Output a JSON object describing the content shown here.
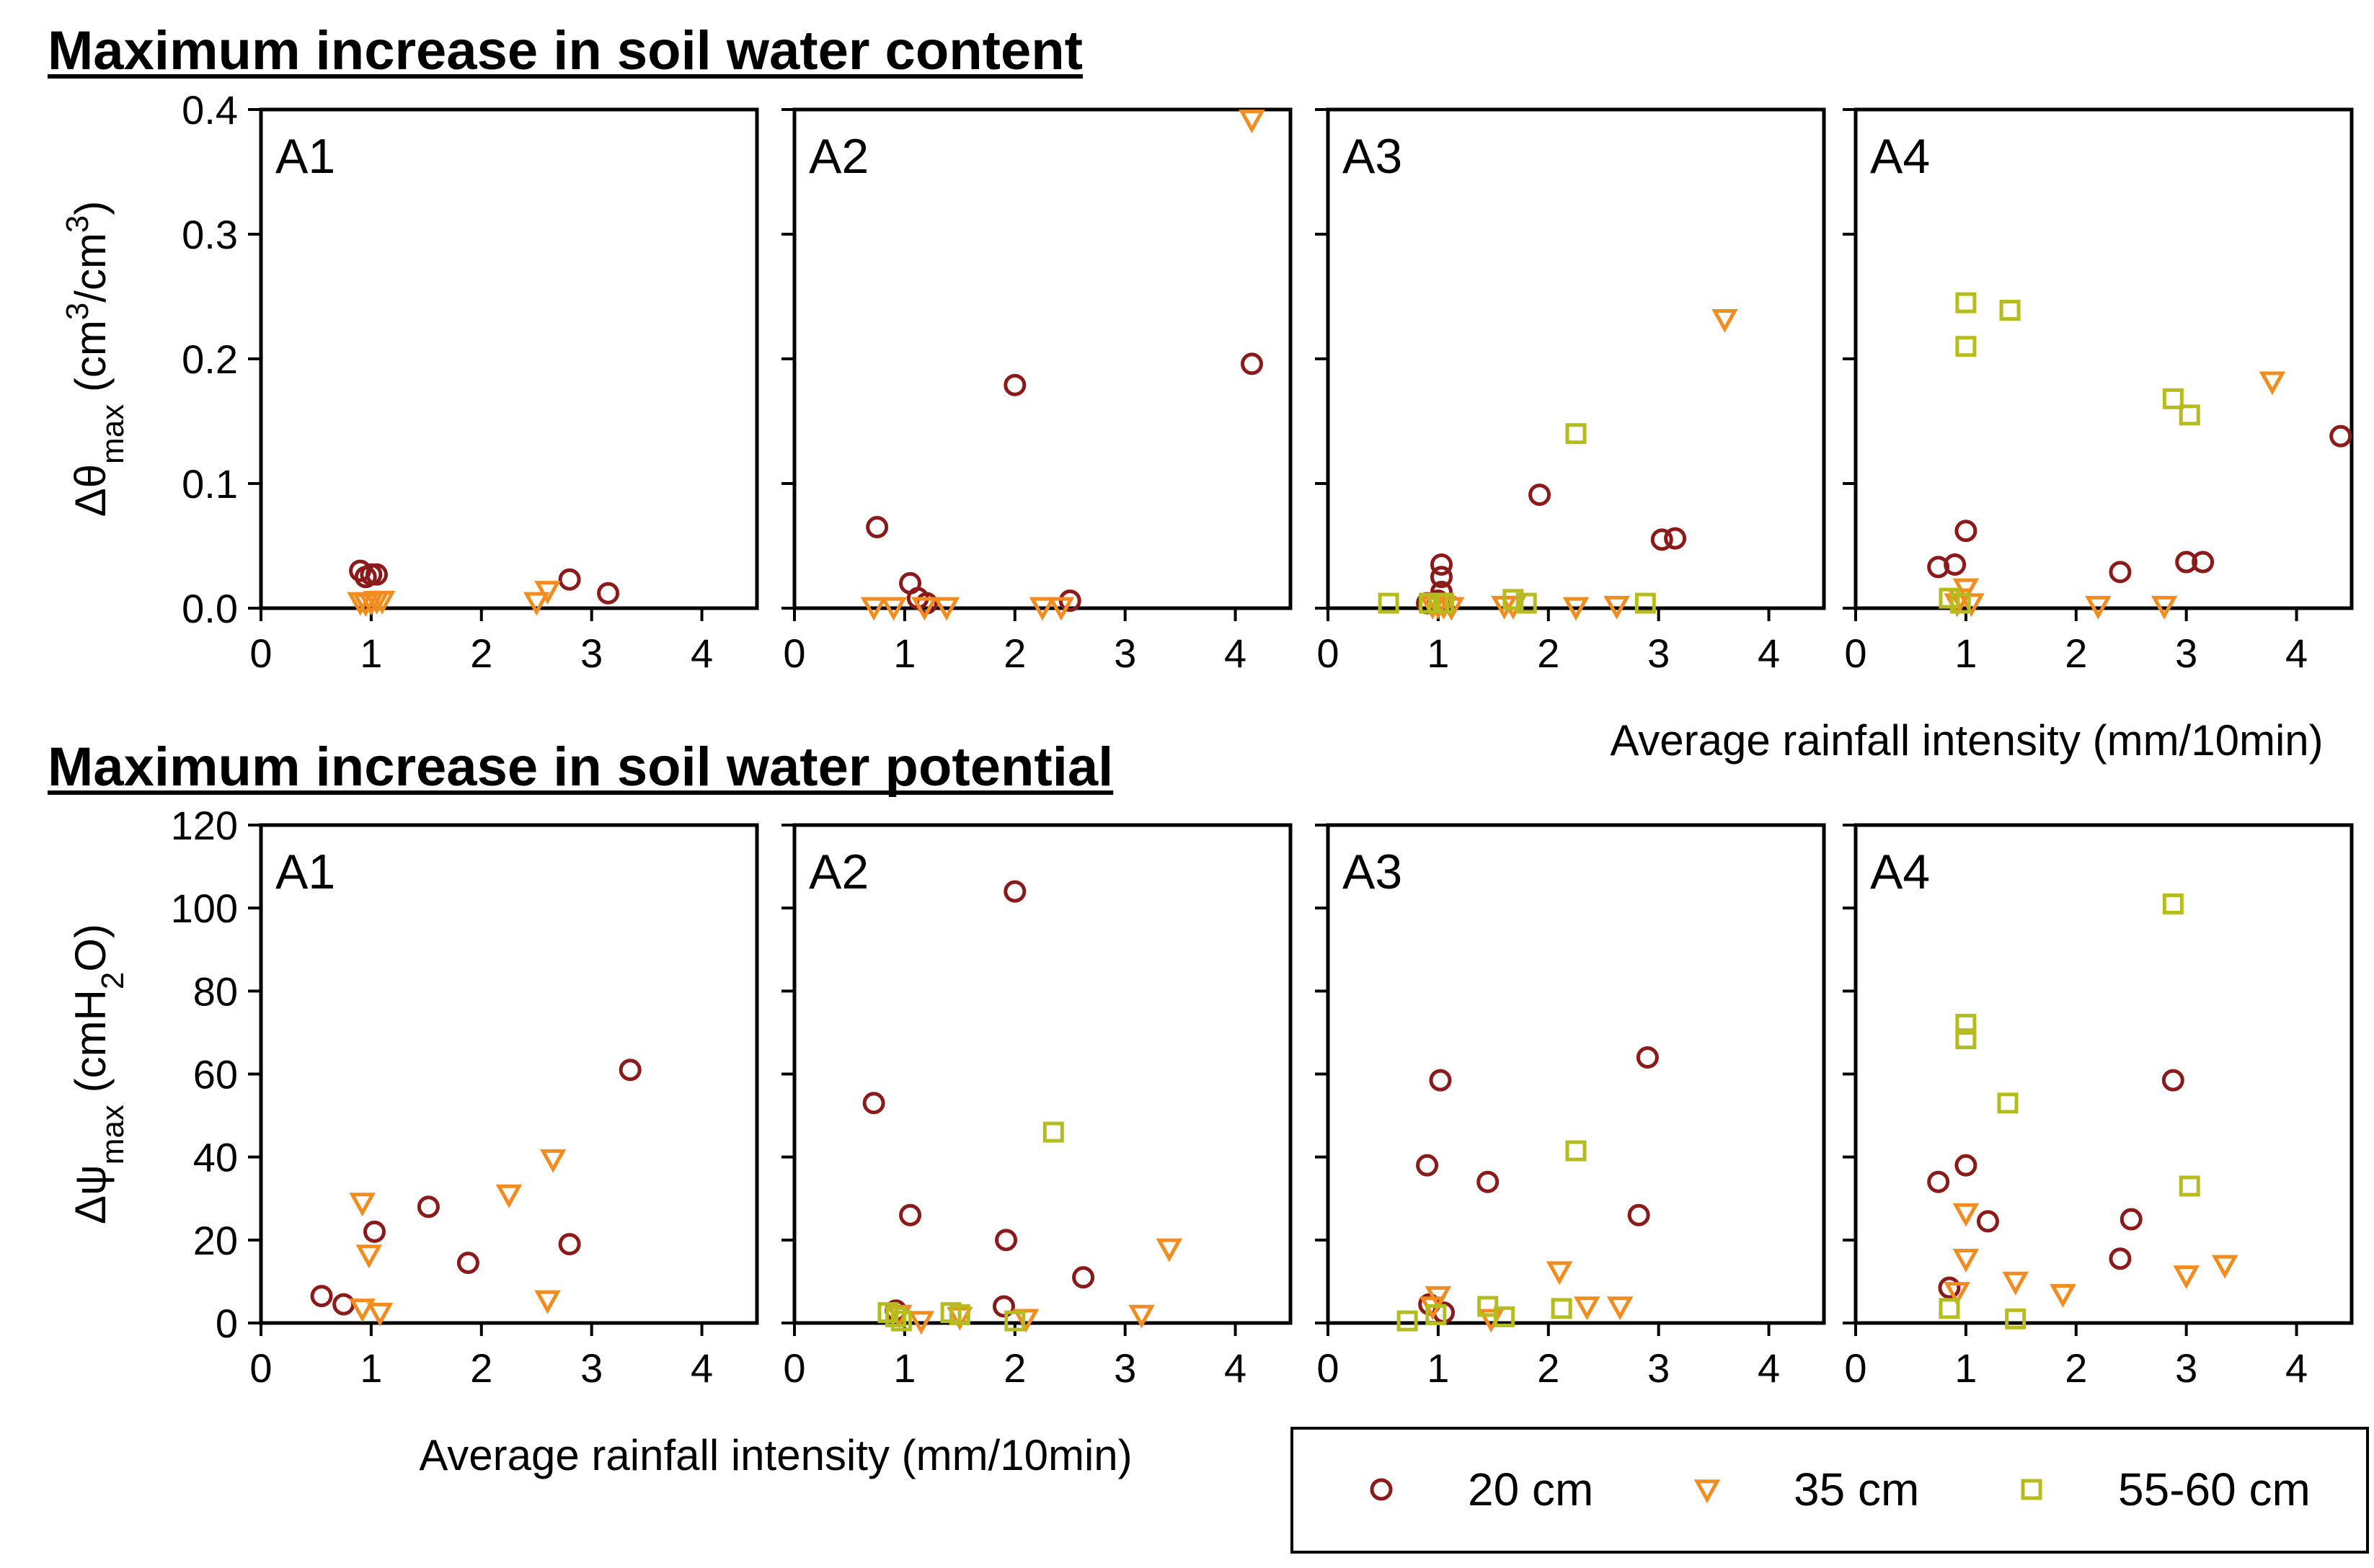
{
  "legend": [
    {
      "name": "20 cm",
      "marker": "circle",
      "color": "#8B1A1A"
    },
    {
      "name": "35 cm",
      "marker": "triangle-down",
      "color": "#F28C1E"
    },
    {
      "name": "55-60 cm",
      "marker": "square",
      "color": "#B5BD1E"
    }
  ],
  "chart_data": [
    {
      "type": "scatter",
      "title": "Maximum increase in soil water content",
      "ylabel": "Δθmax (cm3/cm3)",
      "xlabel": "Average rainfall intensity (mm/10min)",
      "xlim": [
        0,
        4.5
      ],
      "ylim": [
        0,
        0.4
      ],
      "xticks": [
        "0",
        "1",
        "2",
        "3",
        "4"
      ],
      "yticks": [
        "0.0",
        "0.1",
        "0.2",
        "0.3",
        "0.4"
      ],
      "panels": [
        {
          "label": "A1",
          "series": [
            {
              "name": "20 cm",
              "points": [
                [
                  0.9,
                  0.03
                ],
                [
                  0.95,
                  0.025
                ],
                [
                  1.0,
                  0.027
                ],
                [
                  1.05,
                  0.027
                ],
                [
                  2.8,
                  0.023
                ],
                [
                  3.15,
                  0.012
                ]
              ]
            },
            {
              "name": "35 cm",
              "points": [
                [
                  0.9,
                  0.005
                ],
                [
                  0.95,
                  0.004
                ],
                [
                  1.0,
                  0.005
                ],
                [
                  1.05,
                  0.006
                ],
                [
                  1.1,
                  0.006
                ],
                [
                  2.5,
                  0.005
                ],
                [
                  2.6,
                  0.014
                ]
              ]
            },
            {
              "name": "55-60 cm",
              "points": []
            }
          ]
        },
        {
          "label": "A2",
          "series": [
            {
              "name": "20 cm",
              "points": [
                [
                  0.75,
                  0.065
                ],
                [
                  1.05,
                  0.02
                ],
                [
                  1.12,
                  0.008
                ],
                [
                  1.2,
                  0.004
                ],
                [
                  2.0,
                  0.179
                ],
                [
                  2.5,
                  0.006
                ],
                [
                  4.15,
                  0.196
                ]
              ]
            },
            {
              "name": "35 cm",
              "points": [
                [
                  0.72,
                  0.001
                ],
                [
                  0.9,
                  0.001
                ],
                [
                  1.18,
                  0.001
                ],
                [
                  1.38,
                  0.001
                ],
                [
                  2.25,
                  0.001
                ],
                [
                  2.42,
                  0.001
                ],
                [
                  4.15,
                  0.392
                ]
              ]
            },
            {
              "name": "55-60 cm",
              "points": []
            }
          ]
        },
        {
          "label": "A3",
          "series": [
            {
              "name": "20 cm",
              "points": [
                [
                  0.9,
                  0.004
                ],
                [
                  1.0,
                  0.006
                ],
                [
                  1.03,
                  0.013
                ],
                [
                  1.03,
                  0.025
                ],
                [
                  1.03,
                  0.035
                ],
                [
                  1.92,
                  0.091
                ],
                [
                  3.03,
                  0.055
                ],
                [
                  3.15,
                  0.056
                ]
              ]
            },
            {
              "name": "35 cm",
              "points": [
                [
                  0.95,
                  0.002
                ],
                [
                  1.0,
                  0.002
                ],
                [
                  1.05,
                  0.002
                ],
                [
                  1.12,
                  0.001
                ],
                [
                  1.6,
                  0.002
                ],
                [
                  1.68,
                  0.002
                ],
                [
                  2.25,
                  0.001
                ],
                [
                  2.62,
                  0.002
                ],
                [
                  3.6,
                  0.232
                ]
              ]
            },
            {
              "name": "55-60 cm",
              "points": [
                [
                  0.55,
                  0.004
                ],
                [
                  0.92,
                  0.004
                ],
                [
                  1.0,
                  0.004
                ],
                [
                  1.05,
                  0.004
                ],
                [
                  1.68,
                  0.007
                ],
                [
                  1.8,
                  0.004
                ],
                [
                  2.25,
                  0.14
                ],
                [
                  2.88,
                  0.004
                ]
              ]
            }
          ]
        },
        {
          "label": "A4",
          "series": [
            {
              "name": "20 cm",
              "points": [
                [
                  0.75,
                  0.033
                ],
                [
                  0.9,
                  0.035
                ],
                [
                  1.0,
                  0.062
                ],
                [
                  2.4,
                  0.029
                ],
                [
                  3.0,
                  0.037
                ],
                [
                  3.15,
                  0.037
                ],
                [
                  4.4,
                  0.138
                ]
              ]
            },
            {
              "name": "35 cm",
              "points": [
                [
                  0.92,
                  0.004
                ],
                [
                  0.95,
                  0.008
                ],
                [
                  1.0,
                  0.016
                ],
                [
                  1.05,
                  0.004
                ],
                [
                  2.2,
                  0.002
                ],
                [
                  2.8,
                  0.002
                ],
                [
                  3.78,
                  0.182
                ]
              ]
            },
            {
              "name": "55-60 cm",
              "points": [
                [
                  0.85,
                  0.008
                ],
                [
                  0.95,
                  0.004
                ],
                [
                  1.0,
                  0.21
                ],
                [
                  1.0,
                  0.245
                ],
                [
                  1.4,
                  0.239
                ],
                [
                  2.88,
                  0.168
                ],
                [
                  3.03,
                  0.155
                ]
              ]
            }
          ]
        }
      ]
    },
    {
      "type": "scatter",
      "title": "Maximum increase in soil water potential",
      "ylabel": "Δψmax (cmH2O)",
      "xlabel": "Average rainfall intensity (mm/10min)",
      "xlim": [
        0,
        4.5
      ],
      "ylim": [
        0,
        120
      ],
      "xticks": [
        "0",
        "1",
        "2",
        "3",
        "4"
      ],
      "yticks": [
        "0",
        "20",
        "40",
        "60",
        "80",
        "100",
        "120"
      ],
      "panels": [
        {
          "label": "A1",
          "series": [
            {
              "name": "20 cm",
              "points": [
                [
                  0.55,
                  6.5
                ],
                [
                  0.75,
                  4.5
                ],
                [
                  1.03,
                  22
                ],
                [
                  1.52,
                  28
                ],
                [
                  1.88,
                  14.5
                ],
                [
                  2.8,
                  19
                ],
                [
                  3.35,
                  61
                ]
              ]
            },
            {
              "name": "35 cm",
              "points": [
                [
                  0.92,
                  29
                ],
                [
                  0.92,
                  3.5
                ],
                [
                  0.98,
                  16.5
                ],
                [
                  1.08,
                  2.5
                ],
                [
                  2.25,
                  31
                ],
                [
                  2.6,
                  5.5
                ],
                [
                  2.65,
                  39.5
                ]
              ]
            },
            {
              "name": "55-60 cm",
              "points": []
            }
          ]
        },
        {
          "label": "A2",
          "series": [
            {
              "name": "20 cm",
              "points": [
                [
                  0.72,
                  53
                ],
                [
                  0.92,
                  3
                ],
                [
                  1.05,
                  26
                ],
                [
                  1.9,
                  4
                ],
                [
                  1.92,
                  20
                ],
                [
                  2.0,
                  104
                ],
                [
                  2.62,
                  11
                ]
              ]
            },
            {
              "name": "35 cm",
              "points": [
                [
                  0.95,
                  2
                ],
                [
                  1.15,
                  0.5
                ],
                [
                  1.5,
                  1.5
                ],
                [
                  2.1,
                  1
                ],
                [
                  3.15,
                  2
                ],
                [
                  3.4,
                  18
                ]
              ]
            },
            {
              "name": "55-60 cm",
              "points": [
                [
                  0.85,
                  2.5
                ],
                [
                  0.92,
                  1.5
                ],
                [
                  0.97,
                  0.5
                ],
                [
                  1.42,
                  2.5
                ],
                [
                  1.5,
                  2
                ],
                [
                  2.0,
                  0.5
                ],
                [
                  2.35,
                  46
                ]
              ]
            }
          ]
        },
        {
          "label": "A3",
          "series": [
            {
              "name": "20 cm",
              "points": [
                [
                  0.9,
                  38
                ],
                [
                  0.92,
                  4.5
                ],
                [
                  1.02,
                  58.5
                ],
                [
                  1.05,
                  2.5
                ],
                [
                  1.45,
                  34
                ],
                [
                  2.82,
                  26
                ],
                [
                  2.9,
                  64
                ]
              ]
            },
            {
              "name": "35 cm",
              "points": [
                [
                  0.95,
                  4
                ],
                [
                  1.0,
                  6.5
                ],
                [
                  1.48,
                  1
                ],
                [
                  2.1,
                  12.5
                ],
                [
                  2.35,
                  4
                ],
                [
                  2.65,
                  4
                ]
              ]
            },
            {
              "name": "55-60 cm",
              "points": [
                [
                  0.72,
                  0.5
                ],
                [
                  0.98,
                  2
                ],
                [
                  1.45,
                  4
                ],
                [
                  1.6,
                  1.5
                ],
                [
                  2.12,
                  3.5
                ],
                [
                  2.25,
                  41.5
                ]
              ]
            }
          ]
        },
        {
          "label": "A4",
          "series": [
            {
              "name": "20 cm",
              "points": [
                [
                  0.75,
                  34
                ],
                [
                  0.85,
                  8.5
                ],
                [
                  1.0,
                  38
                ],
                [
                  1.2,
                  24.5
                ],
                [
                  2.4,
                  15.5
                ],
                [
                  2.5,
                  25
                ],
                [
                  2.88,
                  58.5
                ]
              ]
            },
            {
              "name": "35 cm",
              "points": [
                [
                  0.92,
                  7.5
                ],
                [
                  1.0,
                  26.5
                ],
                [
                  1.0,
                  15.5
                ],
                [
                  1.45,
                  10
                ],
                [
                  1.88,
                  7
                ],
                [
                  3.0,
                  11.5
                ],
                [
                  3.35,
                  14
                ]
              ]
            },
            {
              "name": "55-60 cm",
              "points": [
                [
                  0.85,
                  3.5
                ],
                [
                  1.0,
                  72
                ],
                [
                  1.0,
                  68.5
                ],
                [
                  1.38,
                  53
                ],
                [
                  1.45,
                  1
                ],
                [
                  2.88,
                  101
                ],
                [
                  3.03,
                  33
                ]
              ]
            }
          ]
        }
      ]
    }
  ]
}
